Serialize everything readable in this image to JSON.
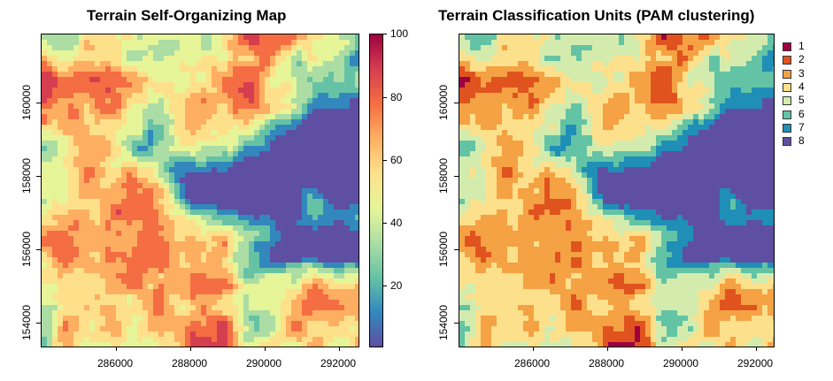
{
  "panels": {
    "left": {
      "title": "Terrain Self-Organizing Map",
      "x_ticks": [
        "286000",
        "288000",
        "290000",
        "292000"
      ],
      "y_ticks": [
        "154000",
        "156000",
        "158000",
        "160000"
      ],
      "colorbar_ticks": [
        "20",
        "40",
        "60",
        "80",
        "100"
      ]
    },
    "right": {
      "title": "Terrain Classification Units (PAM clustering)",
      "x_ticks": [
        "286000",
        "288000",
        "290000",
        "292000"
      ],
      "y_ticks": [
        "154000",
        "156000",
        "158000",
        "160000"
      ],
      "legend": [
        {
          "label": "1",
          "color": "#9e0142"
        },
        {
          "label": "2",
          "color": "#e0531f"
        },
        {
          "label": "3",
          "color": "#f4a243"
        },
        {
          "label": "4",
          "color": "#fde08b"
        },
        {
          "label": "5",
          "color": "#d3ecae"
        },
        {
          "label": "6",
          "color": "#63c3a5"
        },
        {
          "label": "7",
          "color": "#1f8fb8"
        },
        {
          "label": "8",
          "color": "#5e4fa2"
        }
      ]
    }
  },
  "map_data": {
    "x_range": [
      284200,
      292700
    ],
    "y_range": [
      153300,
      161800
    ],
    "colorbar_range": [
      0,
      100
    ],
    "palette": [
      "#5e4fa2",
      "#3288bd",
      "#66c2a5",
      "#abdda4",
      "#e6f598",
      "#fee08b",
      "#fdae61",
      "#f46d43",
      "#d53e4f",
      "#9e0142"
    ]
  }
}
